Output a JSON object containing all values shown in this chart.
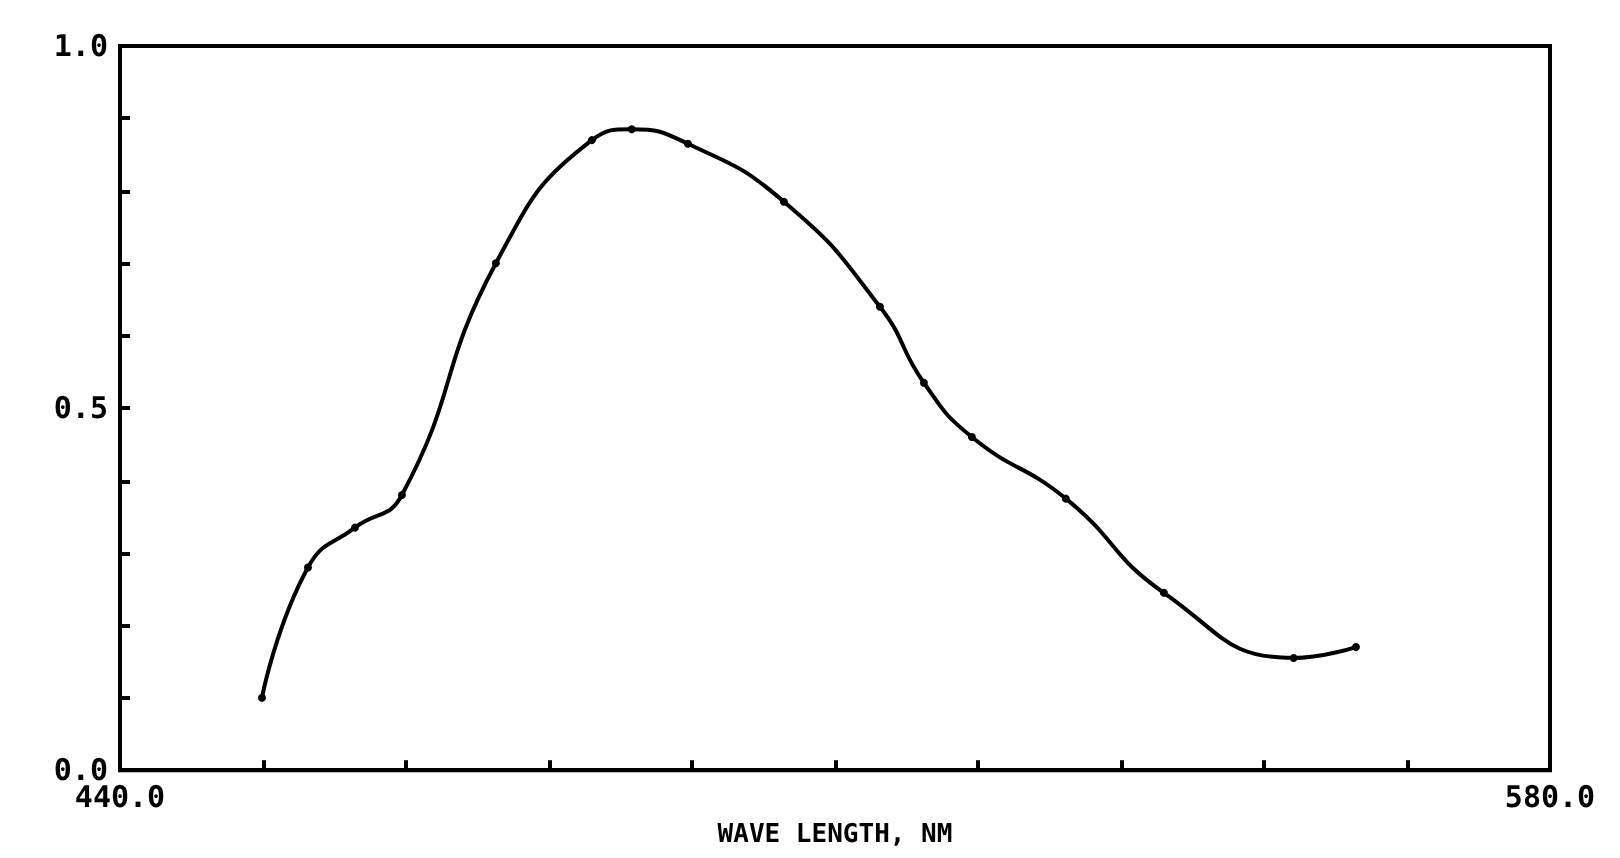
{
  "chart_data": {
    "type": "line",
    "xlabel": "WAVE LENGTH, NM",
    "x": [
      453.9,
      458.4,
      463.0,
      467.6,
      476.8,
      486.2,
      490.1,
      495.6,
      505.0,
      514.4,
      518.7,
      523.4,
      532.6,
      542.2,
      554.9,
      561.0
    ],
    "series": [
      {
        "color": "#000000",
        "values": [
          0.1,
          0.28,
          0.335,
          0.38,
          0.7,
          0.87,
          0.885,
          0.865,
          0.785,
          0.64,
          0.535,
          0.46,
          0.375,
          0.245,
          0.155,
          0.17
        ]
      }
    ],
    "xlim": [
      440,
      580
    ],
    "xticks": [
      {
        "value": 440,
        "label": "440.0"
      },
      {
        "value": 454,
        "label": null
      },
      {
        "value": 468,
        "label": null
      },
      {
        "value": 482,
        "label": null
      },
      {
        "value": 496,
        "label": null
      },
      {
        "value": 510,
        "label": null
      },
      {
        "value": 524,
        "label": null
      },
      {
        "value": 538,
        "label": null
      },
      {
        "value": 552,
        "label": null
      },
      {
        "value": 566,
        "label": null
      },
      {
        "value": 580,
        "label": "580.0"
      }
    ],
    "ylim": [
      0,
      1
    ],
    "yticks": [
      {
        "value": 0,
        "label": "0.0"
      },
      {
        "value": 0.1,
        "label": null
      },
      {
        "value": 0.2,
        "label": null
      },
      {
        "value": 0.3,
        "label": null
      },
      {
        "value": 0.4,
        "label": null
      },
      {
        "value": 0.5,
        "label": "0.5"
      },
      {
        "value": 0.6,
        "label": null
      },
      {
        "value": 0.7,
        "label": null
      },
      {
        "value": 0.8,
        "label": null
      },
      {
        "value": 0.9,
        "label": null
      },
      {
        "value": 1,
        "label": "1.0"
      }
    ],
    "grid": false,
    "marker": "circle",
    "line_style": "solid"
  }
}
